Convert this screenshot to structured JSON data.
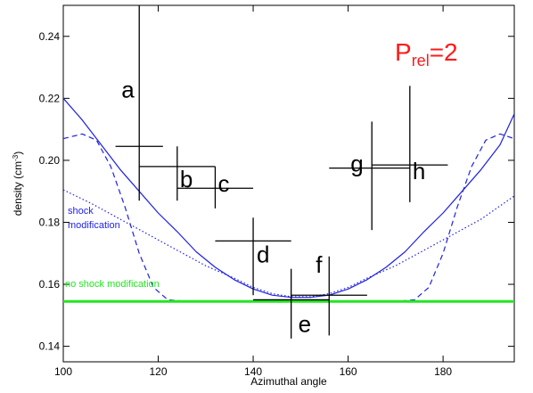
{
  "chart_data": {
    "type": "scatter",
    "xlabel": "Azimuthal angle",
    "ylabel_main": "density (cm",
    "ylabel_sup": "-3",
    "ylabel_end": ")",
    "xlim": [
      100,
      195
    ],
    "ylim": [
      0.135,
      0.25
    ],
    "x_ticks": [
      100,
      120,
      140,
      160,
      180
    ],
    "y_ticks": [
      0.14,
      0.16,
      0.18,
      0.2,
      0.22,
      0.24
    ],
    "annotation": {
      "main": "P",
      "sub": "rel",
      "tail": "=2",
      "color": "#ff1a1a"
    },
    "colors": {
      "model": "#1f1fe6",
      "baseline": "#22e622",
      "data": "#000000"
    },
    "series": [
      {
        "name": "shock modification",
        "style": "solid",
        "points": [
          [
            100,
            0.22
          ],
          [
            104,
            0.213
          ],
          [
            108,
            0.205
          ],
          [
            112,
            0.197
          ],
          [
            116,
            0.19
          ],
          [
            120,
            0.183
          ],
          [
            124,
            0.177
          ],
          [
            128,
            0.1705
          ],
          [
            132,
            0.1655
          ],
          [
            136,
            0.1615
          ],
          [
            140,
            0.1585
          ],
          [
            144,
            0.1565
          ],
          [
            148,
            0.1558
          ],
          [
            152,
            0.1558
          ],
          [
            156,
            0.1565
          ],
          [
            160,
            0.1585
          ],
          [
            164,
            0.1615
          ],
          [
            168,
            0.1655
          ],
          [
            172,
            0.1705
          ],
          [
            176,
            0.177
          ],
          [
            180,
            0.183
          ],
          [
            184,
            0.19
          ],
          [
            188,
            0.197
          ],
          [
            192,
            0.205
          ],
          [
            195,
            0.215
          ]
        ]
      },
      {
        "name": "",
        "style": "dashed",
        "points": [
          [
            100,
            0.207
          ],
          [
            104,
            0.2085
          ],
          [
            107,
            0.2065
          ],
          [
            110,
            0.198
          ],
          [
            113,
            0.185
          ],
          [
            116,
            0.17
          ],
          [
            119,
            0.159
          ],
          [
            122,
            0.155
          ],
          [
            126,
            0.1545
          ],
          [
            130,
            0.1545
          ],
          [
            140,
            0.1545
          ],
          [
            150,
            0.1545
          ],
          [
            160,
            0.1545
          ],
          [
            170,
            0.1545
          ],
          [
            174,
            0.155
          ],
          [
            177,
            0.159
          ],
          [
            180,
            0.17
          ],
          [
            183,
            0.185
          ],
          [
            186,
            0.198
          ],
          [
            189,
            0.2065
          ],
          [
            192,
            0.2085
          ],
          [
            195,
            0.207
          ]
        ]
      },
      {
        "name": "",
        "style": "dotted",
        "points": [
          [
            100,
            0.1905
          ],
          [
            106,
            0.186
          ],
          [
            112,
            0.181
          ],
          [
            118,
            0.176
          ],
          [
            124,
            0.171
          ],
          [
            130,
            0.166
          ],
          [
            136,
            0.162
          ],
          [
            140,
            0.159
          ],
          [
            144,
            0.157
          ],
          [
            148,
            0.156
          ],
          [
            152,
            0.156
          ],
          [
            156,
            0.157
          ],
          [
            160,
            0.159
          ],
          [
            164,
            0.162
          ],
          [
            170,
            0.166
          ],
          [
            176,
            0.171
          ],
          [
            182,
            0.176
          ],
          [
            188,
            0.181
          ],
          [
            195,
            0.1885
          ]
        ]
      },
      {
        "name": "no shock modification",
        "style": "solid",
        "points": [
          [
            100,
            0.1545
          ],
          [
            195,
            0.1545
          ]
        ]
      }
    ],
    "points": [
      {
        "label": "a",
        "x": 116,
        "y": 0.2045,
        "xerr": [
          111,
          121
        ],
        "yerr": [
          0.187,
          0.25
        ]
      },
      {
        "label": "b",
        "x": 124,
        "y": 0.198,
        "xerr": [
          116,
          132
        ],
        "yerr": [
          0.187,
          0.2045
        ]
      },
      {
        "label": "c",
        "x": 132,
        "y": 0.191,
        "xerr": [
          124,
          140
        ],
        "yerr": [
          0.1845,
          0.198
        ]
      },
      {
        "label": "d",
        "x": 140,
        "y": 0.174,
        "xerr": [
          132,
          148
        ],
        "yerr": [
          0.1565,
          0.1815
        ]
      },
      {
        "label": "e",
        "x": 148,
        "y": 0.155,
        "xerr": [
          140,
          156
        ],
        "yerr": [
          0.1425,
          0.165
        ]
      },
      {
        "label": "f",
        "x": 156,
        "y": 0.1565,
        "xerr": [
          148,
          164
        ],
        "yerr": [
          0.1435,
          0.169
        ]
      },
      {
        "label": "g",
        "x": 165,
        "y": 0.1975,
        "xerr": [
          156,
          173
        ],
        "yerr": [
          0.1775,
          0.2125
        ]
      },
      {
        "label": "h",
        "x": 173,
        "y": 0.1985,
        "xerr": [
          165,
          181
        ],
        "yerr": [
          0.1865,
          0.224
        ]
      }
    ]
  }
}
